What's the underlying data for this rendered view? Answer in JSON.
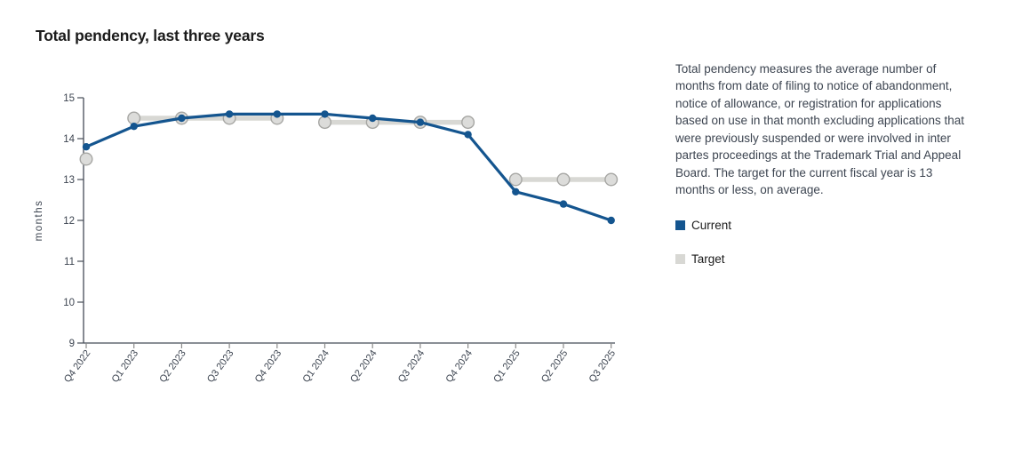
{
  "title": "Total pendency, last three years",
  "description": "Total pendency measures the average number of months from date of filing to notice of abandonment, notice of allowance, or registration for applications based on use in that month excluding applications that were previously suspended or were involved in inter partes proceedings at the Trademark Trial and Appeal Board. The target for the current fiscal year is 13 months or less, on average.",
  "legend": {
    "items": [
      {
        "label": "Current",
        "color": "#14558f"
      },
      {
        "label": "Target",
        "color": "#d8d8d4"
      }
    ]
  },
  "chart_data": {
    "type": "line",
    "title": "Total pendency, last three years",
    "x": [
      "Q4 2022",
      "Q1 2023",
      "Q2 2023",
      "Q3 2023",
      "Q4 2023",
      "Q1 2024",
      "Q2 2024",
      "Q3 2024",
      "Q4 2024",
      "Q1 2025",
      "Q2 2025",
      "Q3 2025"
    ],
    "series": [
      {
        "name": "Current",
        "color": "#14558f",
        "values": [
          13.8,
          14.3,
          14.5,
          14.6,
          14.6,
          14.6,
          14.5,
          14.4,
          14.1,
          12.7,
          12.4,
          12.0
        ]
      },
      {
        "name": "Target",
        "color": "#d8d8d4",
        "marker_fill": "#dcdcda",
        "marker_stroke": "#a6a6a3",
        "values": [
          13.5,
          14.5,
          14.5,
          14.5,
          14.5,
          14.4,
          14.4,
          14.4,
          14.4,
          13.0,
          13.0,
          13.0
        ],
        "segmented_by": "fiscal-year"
      }
    ],
    "xlabel": "",
    "ylabel": "months",
    "ylim": [
      9,
      15
    ],
    "yticks": [
      9,
      10,
      11,
      12,
      13,
      14,
      15
    ],
    "grid": false,
    "legend_position": "right"
  }
}
